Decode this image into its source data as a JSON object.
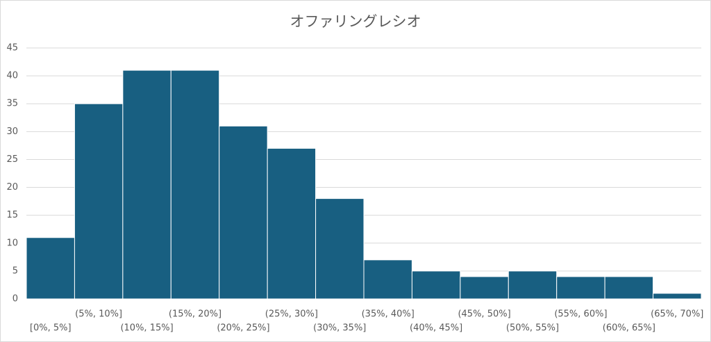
{
  "chart_data": {
    "type": "bar",
    "title": "オファリングレシオ",
    "categories": [
      "[0%, 5%]",
      "(5%, 10%]",
      "(10%, 15%]",
      "(15%, 20%]",
      "(20%, 25%]",
      "(25%, 30%]",
      "(30%, 35%]",
      "(35%, 40%]",
      "(40%, 45%]",
      "(45%, 50%]",
      "(50%, 55%]",
      "(55%, 60%]",
      "(60%, 65%]",
      "(65%, 70%]"
    ],
    "values": [
      11,
      35,
      41,
      41,
      31,
      27,
      18,
      7,
      5,
      4,
      5,
      4,
      4,
      1
    ],
    "color": "#185f81",
    "ylim": [
      0,
      45
    ],
    "yticks": [
      0,
      5,
      10,
      15,
      20,
      25,
      30,
      35,
      40,
      45
    ],
    "grid": true
  }
}
